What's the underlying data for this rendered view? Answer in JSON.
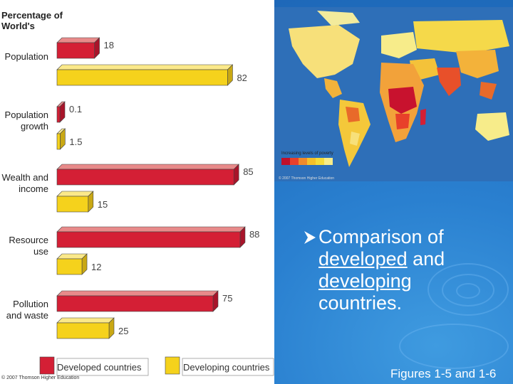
{
  "chart_title": "Percentage of World's",
  "chart_data": {
    "type": "bar",
    "categories": [
      "Population",
      "Population growth",
      "Wealth and income",
      "Resource use",
      "Pollution and waste"
    ],
    "category_lines": [
      [
        "Population"
      ],
      [
        "Population",
        "growth"
      ],
      [
        "Wealth and",
        "income"
      ],
      [
        "Resource",
        "use"
      ],
      [
        "Pollution",
        "and waste"
      ]
    ],
    "series": [
      {
        "name": "Developed countries",
        "values": [
          18,
          0.1,
          85,
          88,
          75
        ]
      },
      {
        "name": "Developing countries",
        "values": [
          82,
          1.5,
          15,
          12,
          25
        ]
      }
    ],
    "value_labels": [
      [
        "18",
        "82"
      ],
      [
        "0.1",
        "1.5"
      ],
      [
        "85",
        "15"
      ],
      [
        "88",
        "12"
      ],
      [
        "75",
        "25"
      ]
    ],
    "colors": {
      "developed": "#d41f35",
      "developing": "#f5d21c",
      "developed_top": "#e88a8a",
      "developing_top": "#fbe98a"
    },
    "orientation": "horizontal",
    "legend": {
      "placement": "bottom",
      "items": [
        "Developed countries",
        "Developing countries"
      ]
    }
  },
  "chart_copyright": "© 2007 Thomson Higher Education",
  "map": {
    "caption": "Increasing levels of poverty",
    "copyright": "© 2007 Thomson Higher Education",
    "scale_colors": [
      "#c0102a",
      "#e8402a",
      "#f08a2a",
      "#f5c02a",
      "#f5dc3a",
      "#f7ec8a"
    ]
  },
  "bullet": {
    "prefix": "Comparison of",
    "word1": "developed",
    "mid": " and",
    "word2": "developing",
    "suffix": "countries."
  },
  "footer": "Figures 1-5 and 1-6"
}
